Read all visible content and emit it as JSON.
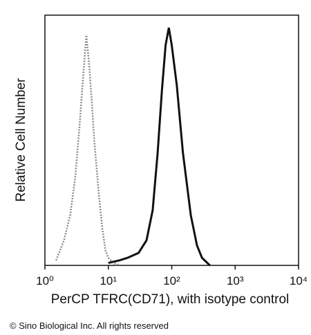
{
  "chart_data": {
    "type": "line",
    "x_label": "PerCP TFRC(CD71), with isotype control",
    "y_label": "Relative Cell Number",
    "x_log": true,
    "xlim": [
      1,
      10000
    ],
    "xticks": [
      {
        "value": 1,
        "label": "10⁰"
      },
      {
        "value": 10,
        "label": "10¹"
      },
      {
        "value": 100,
        "label": "10²"
      },
      {
        "value": 1000,
        "label": "10³"
      },
      {
        "value": 10000,
        "label": "10⁴"
      }
    ],
    "ylim": [
      0,
      100
    ],
    "series": [
      {
        "color": "#888888",
        "dashed": true,
        "x": [
          1.5,
          2,
          2.5,
          3,
          3.5,
          4,
          4.5,
          5,
          5.5,
          6,
          7,
          8,
          9,
          10,
          12,
          15
        ],
        "values": [
          2,
          10,
          20,
          35,
          55,
          75,
          92,
          80,
          65,
          50,
          30,
          15,
          6,
          3,
          1,
          0
        ]
      },
      {
        "color": "#111111",
        "dashed": false,
        "x": [
          10,
          15,
          20,
          30,
          40,
          50,
          60,
          70,
          80,
          90,
          100,
          120,
          150,
          200,
          250,
          300,
          400
        ],
        "values": [
          1,
          2,
          3,
          5,
          10,
          22,
          45,
          70,
          88,
          95,
          88,
          72,
          45,
          20,
          8,
          3,
          0
        ]
      }
    ]
  },
  "footer": "© Sino Biological Inc. All rights reserved"
}
